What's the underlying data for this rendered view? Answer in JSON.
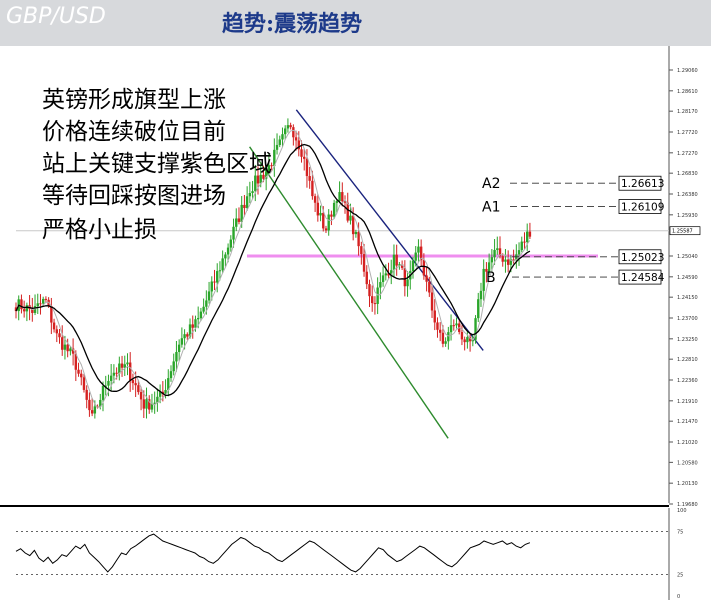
{
  "header": {
    "pair": "GBP/USD",
    "trend": "趋势:震荡趋势"
  },
  "notes": [
    "英镑形成旗型上涨",
    "价格连续破位目前",
    "站上关键支撑紫色区域",
    "等待回踩按图进场",
    "严格小止损"
  ],
  "colors": {
    "bull": "#2aa52a",
    "bear": "#d42020",
    "channel_upper": "#1a237e",
    "channel_lower": "#2e8b2e",
    "support_zone": "#ee82ee",
    "ma_slow": "#000000",
    "ma_fast": "#b0b0b0"
  },
  "chart_data": [
    {
      "type": "candlestick",
      "symbol": "GBP/USD",
      "yticks": [
        "1.29060",
        "1.28610",
        "1.28170",
        "1.27720",
        "1.27270",
        "1.26830",
        "1.26380",
        "1.25930",
        "1.25040",
        "1.24590",
        "1.24150",
        "1.23700",
        "1.23250",
        "1.22810",
        "1.22360",
        "1.21910",
        "1.21470",
        "1.21020",
        "1.20580",
        "1.20130",
        "1.19680"
      ],
      "ylim": [
        1.1968,
        1.2906
      ],
      "current_price": "1.25587",
      "levels": [
        {
          "name": "A2",
          "label": "1.26613",
          "value": 1.26613
        },
        {
          "name": "A1",
          "label": "1.26109",
          "value": 1.26109
        },
        {
          "name": "",
          "label": "1.25023",
          "value": 1.25023
        },
        {
          "name": "",
          "label": "1.24584",
          "value": 1.24584
        }
      ],
      "point_labels": [
        "B"
      ],
      "support_zone": 1.2504,
      "channel": {
        "upper": [
          [
            0.48,
            1.282
          ],
          [
            0.8,
            1.23
          ]
        ],
        "lower": [
          [
            0.4,
            1.274
          ],
          [
            0.74,
            1.211
          ]
        ]
      },
      "anchors": [
        [
          0.0,
          1.24
        ],
        [
          0.03,
          1.2385
        ],
        [
          0.05,
          1.241
        ],
        [
          0.07,
          1.233
        ],
        [
          0.1,
          1.228
        ],
        [
          0.13,
          1.215
        ],
        [
          0.16,
          1.225
        ],
        [
          0.19,
          1.2265
        ],
        [
          0.22,
          1.218
        ],
        [
          0.25,
          1.22
        ],
        [
          0.28,
          1.232
        ],
        [
          0.31,
          1.236
        ],
        [
          0.34,
          1.245
        ],
        [
          0.37,
          1.255
        ],
        [
          0.4,
          1.265
        ],
        [
          0.43,
          1.269
        ],
        [
          0.45,
          1.274
        ],
        [
          0.47,
          1.279
        ],
        [
          0.49,
          1.273
        ],
        [
          0.51,
          1.262
        ],
        [
          0.53,
          1.256
        ],
        [
          0.55,
          1.264
        ],
        [
          0.57,
          1.259
        ],
        [
          0.59,
          1.251
        ],
        [
          0.61,
          1.24
        ],
        [
          0.63,
          1.246
        ],
        [
          0.65,
          1.25
        ],
        [
          0.67,
          1.244
        ],
        [
          0.69,
          1.252
        ],
        [
          0.71,
          1.24
        ],
        [
          0.73,
          1.231
        ],
        [
          0.75,
          1.236
        ],
        [
          0.78,
          1.23
        ],
        [
          0.8,
          1.247
        ],
        [
          0.82,
          1.251
        ],
        [
          0.85,
          1.249
        ],
        [
          0.88,
          1.256
        ]
      ]
    },
    {
      "type": "line",
      "name": "oscillator",
      "yticks": [
        "100",
        "75",
        "25",
        "0"
      ],
      "ylim": [
        0,
        100
      ],
      "guides": [
        75,
        25
      ],
      "values": [
        52,
        55,
        50,
        47,
        53,
        44,
        40,
        45,
        38,
        42,
        48,
        46,
        52,
        58,
        55,
        60,
        50,
        45,
        40,
        34,
        28,
        34,
        42,
        50,
        48,
        55,
        58,
        62,
        66,
        70,
        72,
        68,
        64,
        62,
        60,
        58,
        56,
        54,
        52,
        50,
        46,
        44,
        40,
        38,
        42,
        48,
        54,
        60,
        64,
        68,
        66,
        62,
        58,
        56,
        52,
        50,
        46,
        42,
        40,
        44,
        48,
        52,
        56,
        60,
        64,
        62,
        58,
        54,
        50,
        46,
        42,
        38,
        34,
        30,
        28,
        32,
        38,
        44,
        50,
        56,
        54,
        48,
        44,
        40,
        42,
        46,
        50,
        54,
        58,
        56,
        52,
        48,
        44,
        40,
        36,
        34,
        38,
        44,
        50,
        56,
        58,
        60,
        64,
        62,
        60,
        62,
        64,
        60,
        62,
        58,
        56,
        60,
        62
      ]
    }
  ]
}
